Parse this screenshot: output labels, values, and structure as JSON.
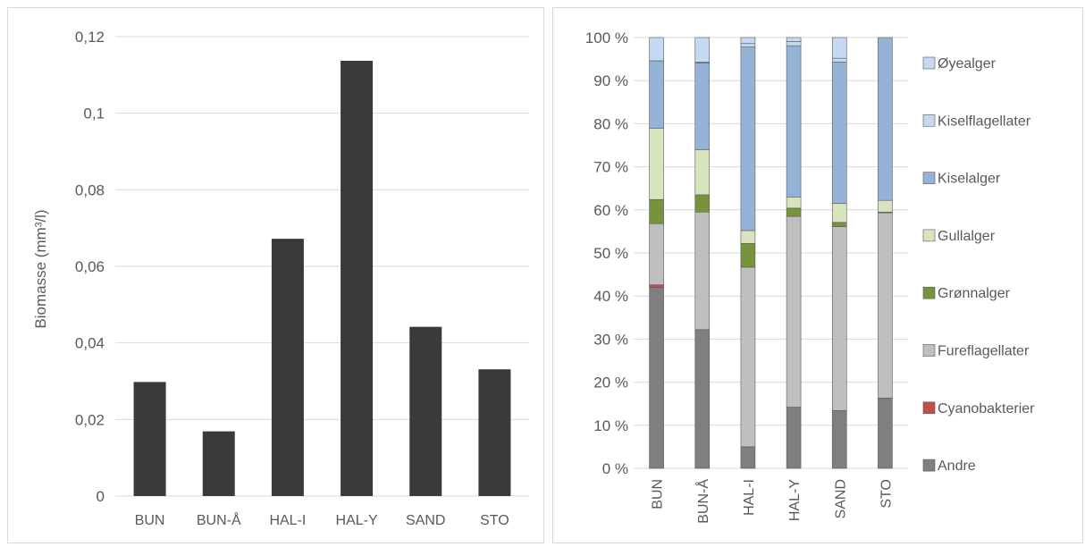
{
  "chart_data": [
    {
      "type": "bar",
      "ylabel": "Biomasse (mm³/l)",
      "categories": [
        "BUN",
        "BUN-Å",
        "HAL-I",
        "HAL-Y",
        "SAND",
        "STO"
      ],
      "values": [
        0.0298,
        0.0169,
        0.0672,
        0.1137,
        0.0442,
        0.0331
      ],
      "ylim": [
        0,
        0.12
      ],
      "yticks": [
        "0",
        "0,02",
        "0,04",
        "0,06",
        "0,08",
        "0,1",
        "0,12"
      ],
      "grid": true,
      "bar_color": "#3a3a3a"
    },
    {
      "type": "bar",
      "stacked": true,
      "percent": true,
      "categories": [
        "BUN",
        "BUN-Å",
        "HAL-I",
        "HAL-Y",
        "SAND",
        "STO"
      ],
      "yticks": [
        "0 %",
        "10 %",
        "20 %",
        "30 %",
        "40 %",
        "50 %",
        "60 %",
        "70 %",
        "80 %",
        "90 %",
        "100 %"
      ],
      "ylim": [
        0,
        100
      ],
      "legend_position": "right",
      "series": [
        {
          "name": "Andre",
          "color": "#7f7f7f",
          "values": [
            42.0,
            32.2,
            5.0,
            14.2,
            13.4,
            16.3
          ]
        },
        {
          "name": "Cyanobakterier",
          "color": "#c0504d",
          "values": [
            0.6,
            0.0,
            0.0,
            0.0,
            0.0,
            0.0
          ]
        },
        {
          "name": "Fureflagellater",
          "color": "#bfbfbf",
          "values": [
            14.2,
            27.3,
            41.7,
            44.3,
            42.7,
            43.0
          ]
        },
        {
          "name": "Grønnalger",
          "color": "#77933c",
          "values": [
            5.6,
            4.0,
            5.5,
            1.9,
            1.0,
            0.2
          ]
        },
        {
          "name": "Gullalger",
          "color": "#d7e4bd",
          "values": [
            16.5,
            10.5,
            3.0,
            2.6,
            4.4,
            2.7
          ]
        },
        {
          "name": "Kiselalger",
          "color": "#95b3d7",
          "values": [
            15.7,
            20.1,
            42.6,
            35.1,
            32.8,
            37.8
          ]
        },
        {
          "name": "Kiselflagellater",
          "color": "#c5d9f1",
          "values": [
            0.0,
            0.2,
            0.8,
            1.0,
            0.9,
            0.0
          ]
        },
        {
          "name": "Øyealger",
          "color": "#c5d9f1",
          "values": [
            5.4,
            5.7,
            1.4,
            0.9,
            4.8,
            0.0
          ]
        }
      ]
    }
  ]
}
